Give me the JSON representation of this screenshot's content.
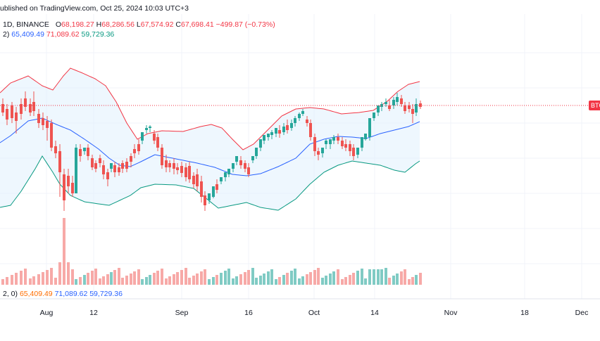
{
  "header": {
    "published": "ublished on TradingView.com, Oct 25, 2024 10:03 UTC+3",
    "symbol_info": "1D, BINANCE",
    "ohlc": {
      "o_label": "O",
      "o": "68,198.27",
      "h_label": "H",
      "h": "68,286.56",
      "l_label": "L",
      "l": "67,574.92",
      "c_label": "C",
      "c": "67,698.41",
      "change": "−499.87 (−0.73%)"
    },
    "bb_prefix": "2)",
    "bb_basis": "65,409.49",
    "bb_upper": "71,089.62",
    "bb_lower": "59,729.36"
  },
  "bb_bottom": {
    "prefix": "2, 0)",
    "basis": "65,409.49",
    "upper": "71,089.62",
    "lower": "59,729.36"
  },
  "price_tag": "BTC",
  "x_axis_labels": [
    "Aug",
    "12",
    "Sep",
    "16",
    "Oct",
    "14",
    "Nov",
    "18",
    "Dec"
  ],
  "colors": {
    "up": "#26a69a",
    "down": "#ef5350",
    "upper_band": "#f23645",
    "basis": "#2962ff",
    "lower_band": "#089981",
    "band_fill": "#e3f2fd",
    "vol_up": "#80cbc4",
    "vol_down": "#f7a9a7"
  },
  "chart_data": {
    "type": "candlestick",
    "candle_count": 99,
    "last_candle": {
      "open": 68198.27,
      "high": 68286.56,
      "low": 67574.92,
      "close": 67698.41
    },
    "bollinger": {
      "basis": 65409.49,
      "upper": 71089.62,
      "lower": 59729.36
    },
    "x_labels": [
      "Aug",
      "12",
      "Sep",
      "16",
      "Oct",
      "14",
      "Nov",
      "18",
      "Dec"
    ]
  }
}
